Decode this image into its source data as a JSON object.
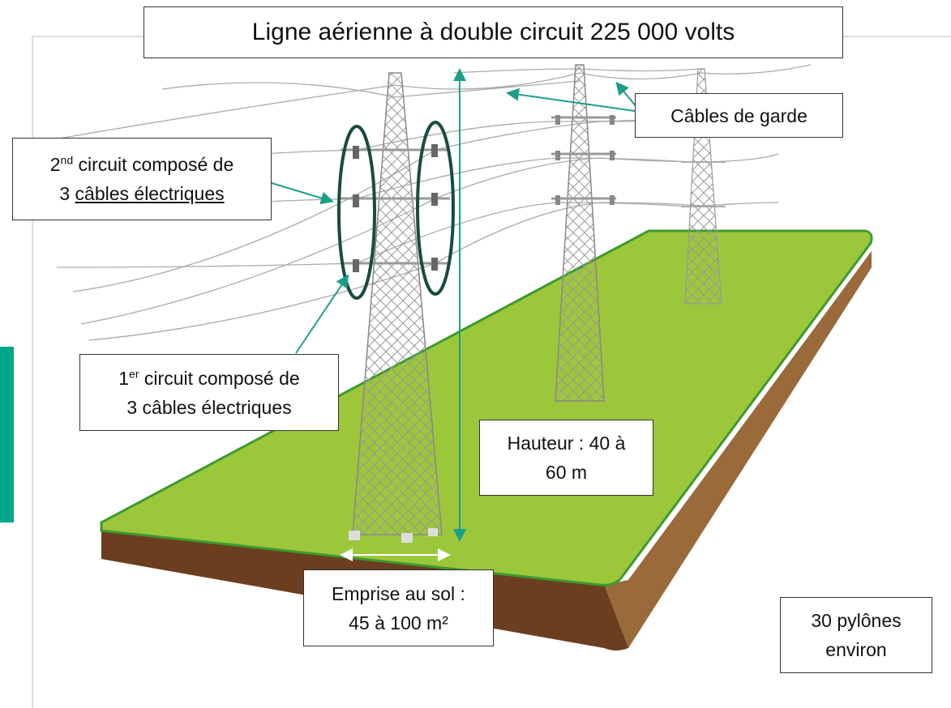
{
  "title": "Ligne aérienne à double circuit 225 000 volts",
  "labels": {
    "guard_cables": "Câbles de garde",
    "circuit2": {
      "number": "2",
      "suffix": "nd",
      "line1": " circuit composé de",
      "line2_start": "3 ",
      "line2_underlined": "câbles électriques"
    },
    "circuit1": {
      "number": "1",
      "suffix": "er",
      "line1": " circuit composé de",
      "line2": "3 câbles électriques"
    },
    "height": [
      "Hauteur : 40 à",
      "60 m"
    ],
    "footprint": [
      "Emprise au sol :",
      "45 à 100 m²"
    ],
    "pylons": [
      "30 pylônes",
      "environ"
    ]
  }
}
